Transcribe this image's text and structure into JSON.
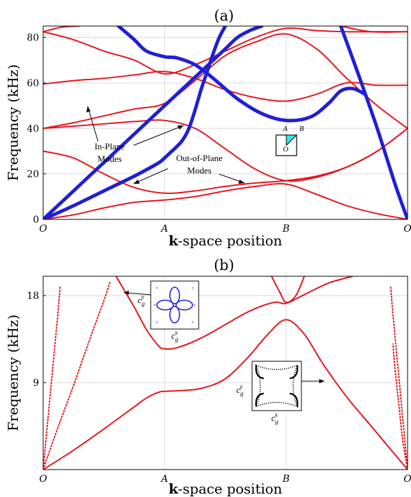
{
  "chart_data": [
    {
      "panel_label": "(a)",
      "type": "line",
      "xlabel_bold": "k",
      "xlabel_rest": "-space position",
      "ylabel": "Frequency (kHz)",
      "x_ticks": [
        "O",
        "A",
        "B",
        "O"
      ],
      "y_ticks": [
        "0",
        "20",
        "40",
        "60",
        "80"
      ],
      "ylim": [
        0,
        85
      ],
      "grid": true,
      "colors": {
        "out_of_plane": "#e8141b",
        "in_plane": "#1f1fd6"
      },
      "annotations": {
        "in_plane": [
          "In-Plane",
          "Modes"
        ],
        "out_of_plane": [
          "Out-of-Plane",
          "Modes"
        ],
        "inset_labels": [
          "A",
          "B",
          "O"
        ]
      },
      "out_of_plane_branches": [
        {
          "x": [
            0,
            0.25,
            0.5,
            0.75,
            1,
            1.25,
            1.5,
            1.75,
            2,
            2.25,
            2.5,
            2.75,
            3
          ],
          "y": [
            0,
            2,
            5,
            7.5,
            8.5,
            10,
            12.5,
            14.5,
            15.5,
            11,
            6,
            2.5,
            0
          ]
        },
        {
          "x": [
            0,
            0.25,
            0.5,
            0.75,
            1,
            1.25,
            1.5,
            1.75,
            2,
            2.25,
            2.5,
            2.75,
            3
          ],
          "y": [
            30,
            27,
            20,
            14,
            11.5,
            12.5,
            14.5,
            16,
            17,
            19,
            23,
            30,
            40
          ]
        },
        {
          "x": [
            0,
            0.25,
            0.5,
            0.75,
            1,
            1.25,
            1.5,
            1.75,
            2,
            2.25,
            2.5,
            2.75,
            3
          ],
          "y": [
            40,
            41,
            42,
            43,
            43.5,
            40,
            31,
            22,
            17,
            18.5,
            23,
            30,
            40
          ]
        },
        {
          "x": [
            0,
            0.25,
            0.5,
            0.75,
            1,
            1.25,
            1.5,
            1.75,
            2,
            2.25,
            2.5,
            2.75,
            3
          ],
          "y": [
            40,
            42.5,
            45.5,
            48.5,
            51,
            61,
            72,
            78,
            81.5,
            75,
            62,
            50,
            40
          ]
        },
        {
          "x": [
            0,
            0.25,
            0.5,
            0.75,
            1,
            1.25,
            1.5,
            1.75,
            2,
            2.25,
            2.5,
            2.75,
            3
          ],
          "y": [
            59.5,
            61,
            62,
            63.5,
            65,
            62,
            57,
            53.5,
            52,
            55,
            60,
            59,
            59
          ]
        },
        {
          "x": [
            0,
            0.25,
            0.5,
            0.75,
            1,
            1.25,
            1.5,
            1.75,
            2,
            2.25,
            2.5,
            2.75,
            3
          ],
          "y": [
            82.5,
            79,
            74,
            70,
            64,
            68,
            74,
            80,
            84,
            83,
            82.5,
            82.5,
            82.5
          ]
        },
        {
          "x": [
            0,
            0.15,
            0.3
          ],
          "y": [
            82.5,
            84.5,
            85
          ]
        },
        {
          "x": [
            2.45,
            2.7,
            3
          ],
          "y": [
            85,
            82.5,
            82.5
          ]
        }
      ],
      "in_plane_branches": [
        {
          "x": [
            0,
            0.25,
            0.5,
            0.75,
            0.94,
            1,
            1.05,
            1.1,
            1.15,
            1.2,
            1.25,
            1.3,
            1.35,
            1.4,
            1.45,
            1.5
          ],
          "y": [
            0,
            6,
            12.5,
            19,
            24.5,
            27,
            29.5,
            32,
            35,
            40,
            48,
            57,
            65,
            73,
            80,
            85
          ]
        },
        {
          "x": [
            0,
            0.1,
            0.2,
            0.3,
            0.4,
            0.5,
            0.6,
            0.7,
            0.8,
            0.9,
            1.0,
            1.1,
            1.2,
            1.3,
            1.4,
            1.5,
            1.6,
            1.7,
            1.8
          ],
          "y": [
            0,
            5,
            10,
            15,
            20,
            25,
            30,
            35,
            40,
            45,
            50,
            55,
            60,
            65,
            70,
            75,
            80,
            83,
            85
          ]
        },
        {
          "x": [
            0.62,
            0.75,
            0.85,
            1,
            1.1,
            1.25,
            1.4,
            1.6,
            1.8,
            2,
            2.2,
            2.35,
            2.45,
            2.55,
            2.65
          ],
          "y": [
            85,
            79,
            74,
            71.5,
            71,
            68,
            62,
            53,
            46.5,
            43.5,
            45,
            51,
            56.5,
            57.5,
            55
          ]
        },
        {
          "x": [
            2.45,
            2.6,
            2.75,
            2.9,
            3
          ],
          "y": [
            85,
            63,
            40,
            15,
            0
          ]
        }
      ]
    },
    {
      "panel_label": "(b)",
      "type": "line",
      "xlabel_bold": "k",
      "xlabel_rest": "-space position",
      "ylabel": "Frequency (kHz)",
      "x_ticks": [
        "O",
        "A",
        "B",
        "O"
      ],
      "y_ticks": [
        "9",
        "18"
      ],
      "ylim": [
        0,
        20
      ],
      "grid": true,
      "colors": {
        "curves": "#e8141b",
        "inset": "#1f1fd6"
      },
      "annotations": {
        "inset1_labels": [
          "c",
          "g",
          "y",
          "c",
          "g",
          "x"
        ],
        "inset2_labels": [
          "c",
          "g",
          "y",
          "c",
          "g",
          "x"
        ]
      },
      "branches": [
        {
          "x": [
            0,
            0.25,
            0.5,
            0.75,
            0.85,
            0.95,
            1,
            1.1,
            1.3,
            1.5,
            1.7,
            1.85,
            2,
            2.15,
            2.3,
            2.5,
            2.7,
            2.9,
            3
          ],
          "y": [
            0,
            2,
            4.2,
            6.5,
            7.4,
            8,
            8.1,
            8.15,
            8.4,
            9.4,
            11.8,
            14,
            15.5,
            14,
            11,
            7.5,
            4.5,
            1.5,
            0
          ]
        },
        {
          "x": [
            0.6,
            0.75,
            0.85,
            0.95,
            1,
            1.1,
            1.3,
            1.5,
            1.7,
            1.9,
            2,
            2.15,
            2.35,
            2.55
          ],
          "y": [
            20,
            16.8,
            14.5,
            12.8,
            12.5,
            12.6,
            13.6,
            15,
            16.4,
            17.3,
            17.2,
            18.1,
            19.3,
            20
          ]
        },
        {
          "x": [
            1.88,
            1.95,
            2,
            2.08,
            2.15
          ],
          "y": [
            20,
            18.3,
            17.3,
            18,
            20
          ]
        },
        {
          "x": [
            0,
            0.12,
            0.25,
            0.37,
            0.5,
            0.55
          ],
          "y": [
            0,
            4.3,
            8.7,
            13,
            17.5,
            19.4
          ]
        },
        {
          "x": [
            0,
            0.03,
            0.06,
            0.09,
            0.12,
            0.14
          ],
          "y": [
            0,
            4,
            8,
            12,
            16,
            19
          ]
        },
        {
          "x": [
            3,
            2.97,
            2.94,
            2.91,
            2.88,
            2.86
          ],
          "y": [
            0,
            4,
            8,
            12,
            16,
            19
          ]
        },
        {
          "x": [
            3,
            2.96,
            2.93,
            2.9,
            2.88
          ],
          "y": [
            0,
            3,
            6.5,
            10,
            13
          ]
        }
      ]
    }
  ]
}
